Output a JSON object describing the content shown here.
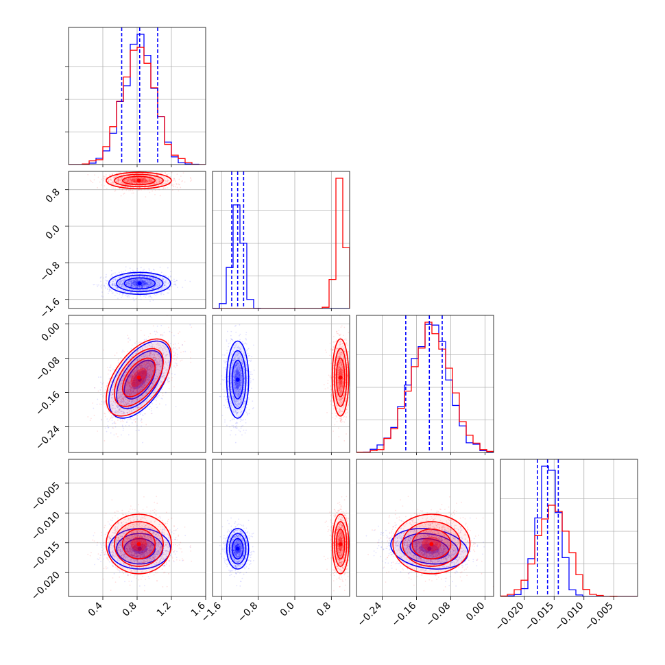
{
  "chart_data": {
    "type": "corner",
    "colors": {
      "blue": "#0000ff",
      "red": "#ff0000"
    },
    "grid": true,
    "parameters": [
      {
        "range": [
          0.0,
          1.6
        ],
        "ticks": [
          "0.4",
          "0.8",
          "1.2",
          "1.6"
        ],
        "tick_values": [
          0.4,
          0.8,
          1.2,
          1.6
        ]
      },
      {
        "range": [
          -1.8,
          1.2
        ],
        "ticks": [
          "−1.6",
          "−0.8",
          "0.0",
          "0.8"
        ],
        "tick_values": [
          -1.6,
          -0.8,
          0.0,
          0.8
        ]
      },
      {
        "range": [
          -0.3,
          0.02
        ],
        "ticks": [
          "−0.24",
          "−0.16",
          "−0.08",
          "0.00"
        ],
        "tick_values": [
          -0.24,
          -0.16,
          -0.08,
          0.0
        ]
      },
      {
        "range": [
          -0.024,
          -0.001
        ],
        "ticks": [
          "−0.020",
          "−0.015",
          "−0.010",
          "−0.005"
        ],
        "tick_values": [
          -0.02,
          -0.015,
          -0.01,
          -0.005
        ]
      }
    ],
    "series": [
      {
        "color": "blue",
        "mean": [
          0.83,
          -1.25,
          -0.13,
          -0.016
        ],
        "std": [
          0.18,
          0.12,
          0.045,
          0.0017
        ],
        "corr01": 0.0,
        "corr02": 0.55,
        "corr23": -0.2,
        "quantiles": [
          [
            0.62,
            0.83,
            1.04
          ],
          [
            -1.38,
            -1.25,
            -1.12
          ],
          [
            -0.185,
            -0.13,
            -0.1
          ],
          [
            -0.0178,
            -0.0161,
            -0.0143
          ]
        ]
      },
      {
        "color": "red",
        "mean": [
          0.82,
          1.0,
          -0.125,
          -0.0152
        ],
        "std": [
          0.19,
          0.09,
          0.045,
          0.0025
        ],
        "corr01": 0.0,
        "corr02": 0.55,
        "corr23": 0.0
      }
    ]
  }
}
